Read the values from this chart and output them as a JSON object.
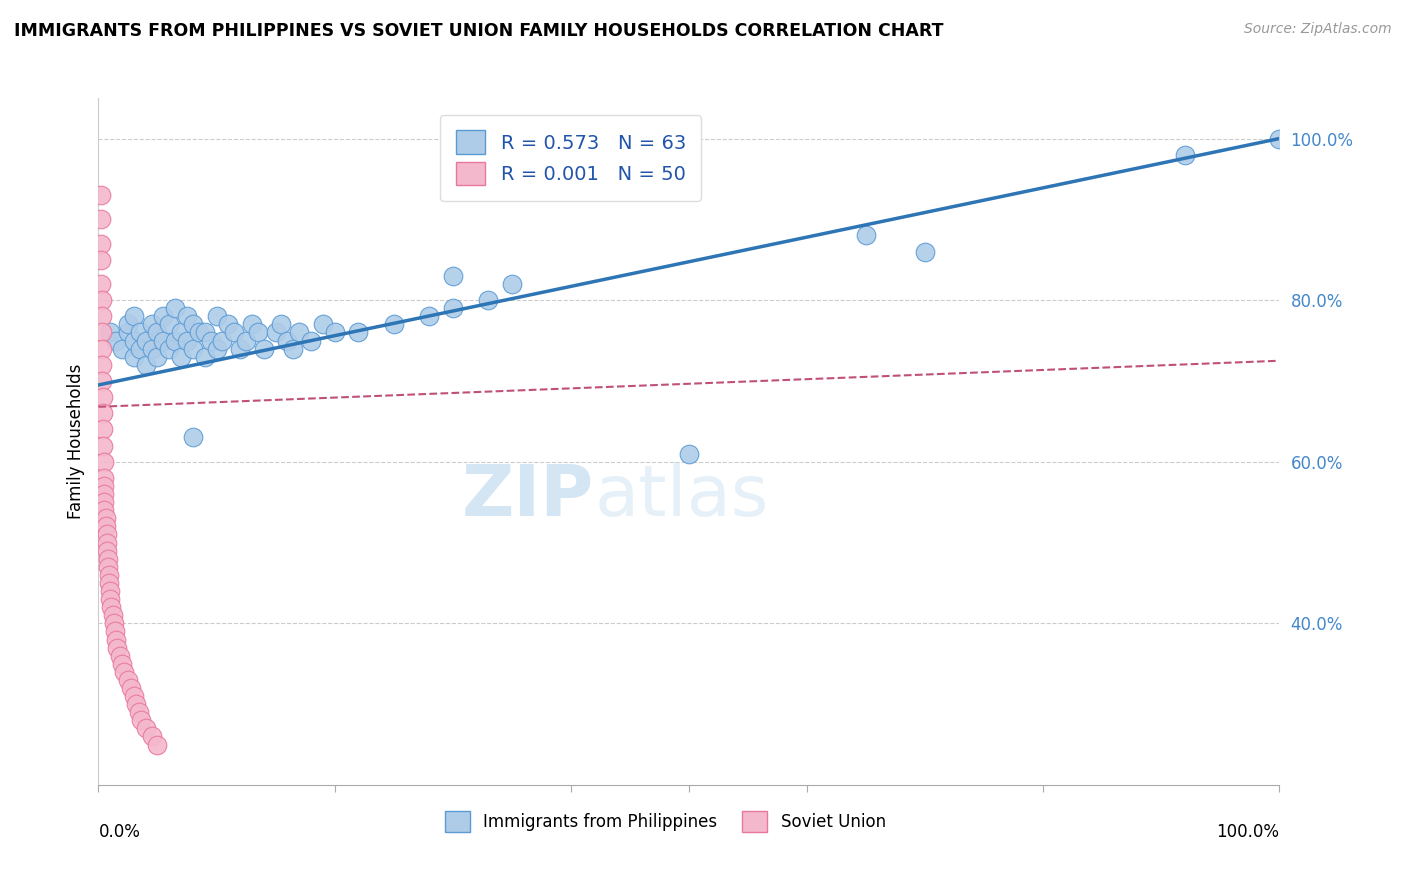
{
  "title": "IMMIGRANTS FROM PHILIPPINES VS SOVIET UNION FAMILY HOUSEHOLDS CORRELATION CHART",
  "source": "Source: ZipAtlas.com",
  "ylabel": "Family Households",
  "legend_label_blue": "Immigrants from Philippines",
  "legend_label_pink": "Soviet Union",
  "blue_color": "#aecce8",
  "blue_edge_color": "#5b9bd5",
  "blue_line_color": "#2e75b6",
  "pink_color": "#f4b8cc",
  "pink_edge_color": "#e8789a",
  "pink_line_color": "#c0507a",
  "watermark_color": "#ddeeff",
  "grid_color": "#cccccc",
  "background_color": "#ffffff",
  "blue_scatter_x": [
    0.01,
    0.015,
    0.02,
    0.025,
    0.025,
    0.03,
    0.03,
    0.03,
    0.035,
    0.035,
    0.04,
    0.04,
    0.045,
    0.045,
    0.05,
    0.05,
    0.055,
    0.055,
    0.06,
    0.06,
    0.065,
    0.065,
    0.07,
    0.07,
    0.075,
    0.075,
    0.08,
    0.08,
    0.085,
    0.09,
    0.09,
    0.095,
    0.1,
    0.1,
    0.105,
    0.11,
    0.115,
    0.12,
    0.125,
    0.13,
    0.135,
    0.14,
    0.15,
    0.155,
    0.16,
    0.165,
    0.17,
    0.18,
    0.19,
    0.2,
    0.22,
    0.25,
    0.28,
    0.3,
    0.3,
    0.33,
    0.35,
    0.65,
    0.7,
    0.92,
    1.0,
    0.08,
    0.5
  ],
  "blue_scatter_y": [
    0.76,
    0.75,
    0.74,
    0.76,
    0.77,
    0.73,
    0.75,
    0.78,
    0.74,
    0.76,
    0.72,
    0.75,
    0.74,
    0.77,
    0.73,
    0.76,
    0.75,
    0.78,
    0.74,
    0.77,
    0.75,
    0.79,
    0.73,
    0.76,
    0.75,
    0.78,
    0.74,
    0.77,
    0.76,
    0.73,
    0.76,
    0.75,
    0.74,
    0.78,
    0.75,
    0.77,
    0.76,
    0.74,
    0.75,
    0.77,
    0.76,
    0.74,
    0.76,
    0.77,
    0.75,
    0.74,
    0.76,
    0.75,
    0.77,
    0.76,
    0.76,
    0.77,
    0.78,
    0.79,
    0.83,
    0.8,
    0.82,
    0.88,
    0.86,
    0.98,
    1.0,
    0.63,
    0.61
  ],
  "pink_scatter_x": [
    0.002,
    0.002,
    0.002,
    0.002,
    0.002,
    0.003,
    0.003,
    0.003,
    0.003,
    0.003,
    0.003,
    0.004,
    0.004,
    0.004,
    0.004,
    0.005,
    0.005,
    0.005,
    0.005,
    0.005,
    0.005,
    0.006,
    0.006,
    0.007,
    0.007,
    0.007,
    0.008,
    0.008,
    0.009,
    0.009,
    0.01,
    0.01,
    0.011,
    0.012,
    0.013,
    0.014,
    0.015,
    0.016,
    0.018,
    0.02,
    0.022,
    0.025,
    0.028,
    0.03,
    0.032,
    0.034,
    0.036,
    0.04,
    0.045,
    0.05
  ],
  "pink_scatter_y": [
    0.93,
    0.9,
    0.87,
    0.85,
    0.82,
    0.8,
    0.78,
    0.76,
    0.74,
    0.72,
    0.7,
    0.68,
    0.66,
    0.64,
    0.62,
    0.6,
    0.58,
    0.57,
    0.56,
    0.55,
    0.54,
    0.53,
    0.52,
    0.51,
    0.5,
    0.49,
    0.48,
    0.47,
    0.46,
    0.45,
    0.44,
    0.43,
    0.42,
    0.41,
    0.4,
    0.39,
    0.38,
    0.37,
    0.36,
    0.35,
    0.34,
    0.33,
    0.32,
    0.31,
    0.3,
    0.29,
    0.28,
    0.27,
    0.26,
    0.25
  ],
  "blue_trendline_x": [
    0.0,
    1.0
  ],
  "blue_trendline_y": [
    0.695,
    1.0
  ],
  "pink_trendline_x": [
    0.0,
    1.0
  ],
  "pink_trendline_y": [
    0.668,
    0.725
  ],
  "xlim": [
    0.0,
    1.0
  ],
  "ylim": [
    0.2,
    1.05
  ],
  "ytick_positions": [
    1.0,
    0.8,
    0.6,
    0.4
  ],
  "ytick_labels": [
    "100.0%",
    "80.0%",
    "60.0%",
    "40.0%"
  ],
  "xtick_positions": [
    0.0,
    0.2,
    0.4,
    0.5,
    0.6,
    0.8,
    1.0
  ]
}
